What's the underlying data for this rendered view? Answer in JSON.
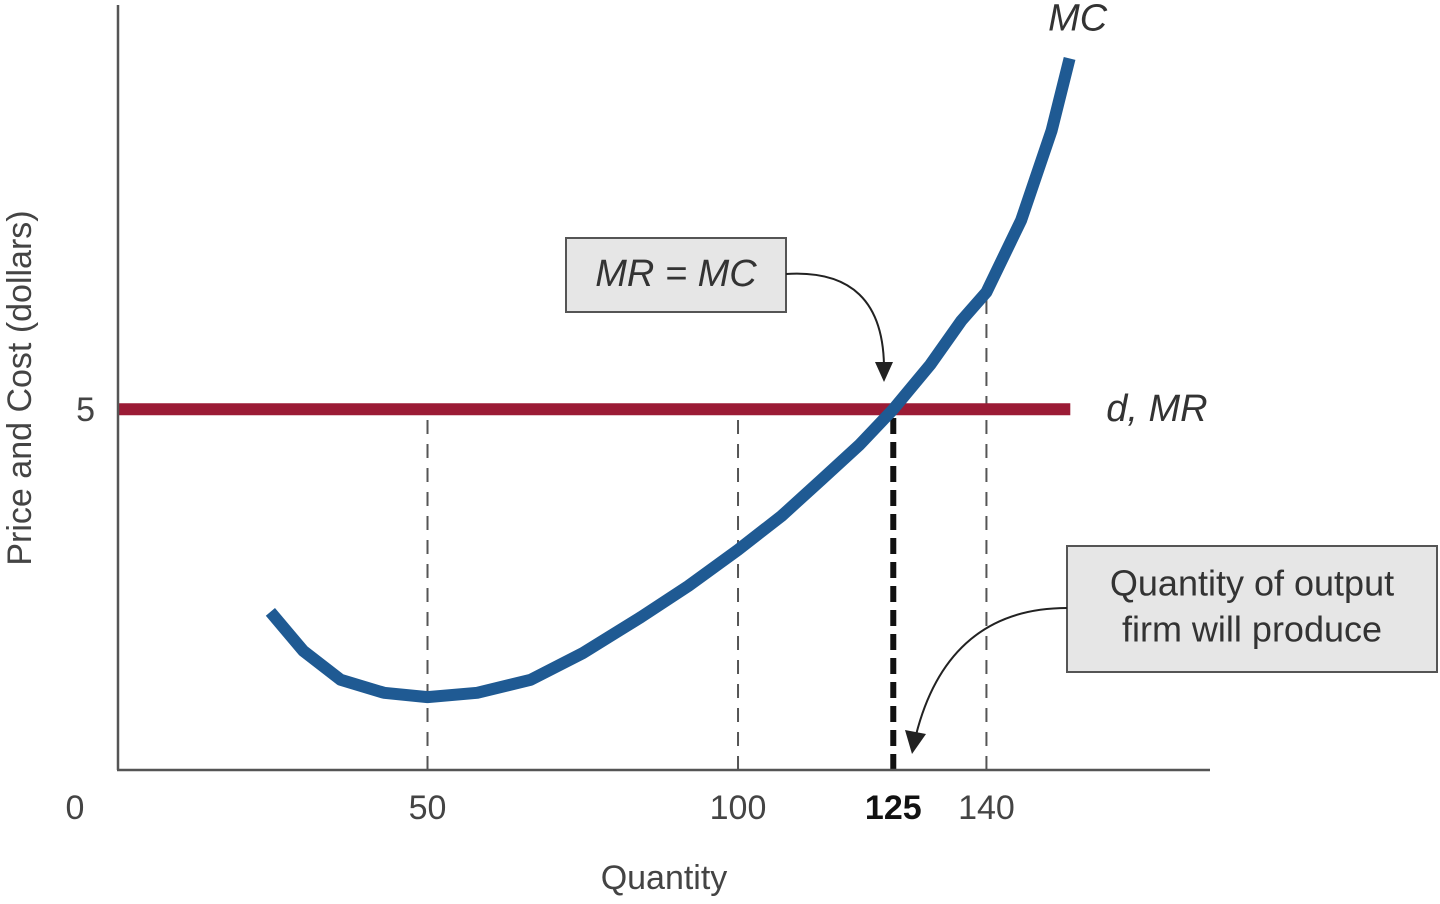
{
  "chart_data": {
    "type": "line",
    "x_label": "Quantity",
    "y_label": "Price and Cost (dollars)",
    "xlim": [
      0,
      176
    ],
    "ylim": [
      0,
      10.6
    ],
    "xticks": [
      0,
      50,
      100,
      125,
      140
    ],
    "yticks": [
      5
    ],
    "drop_lines": true,
    "highlight_tick": 3,
    "series": [
      {
        "name": "d, MR",
        "color": "#9b1b35",
        "x": [
          0,
          153.5
        ],
        "values": [
          5,
          5
        ]
      },
      {
        "name": "MC",
        "color": "#1f5a93",
        "x": [
          24.7,
          30,
          36,
          43,
          50,
          58,
          66.6,
          75,
          84.4,
          92,
          100,
          107,
          113.4,
          119.5,
          125,
          131,
          136,
          140,
          145.6,
          150.5,
          153.4
        ],
        "values": [
          2.19,
          1.65,
          1.25,
          1.07,
          1.01,
          1.07,
          1.25,
          1.62,
          2.12,
          2.55,
          3.05,
          3.52,
          4.02,
          4.5,
          5.0,
          5.62,
          6.23,
          6.62,
          7.62,
          8.86,
          9.86
        ]
      }
    ],
    "annotations": [
      {
        "text": "MR = MC"
      },
      {
        "lines": [
          "Quantity of output",
          "firm will produce"
        ]
      }
    ]
  }
}
